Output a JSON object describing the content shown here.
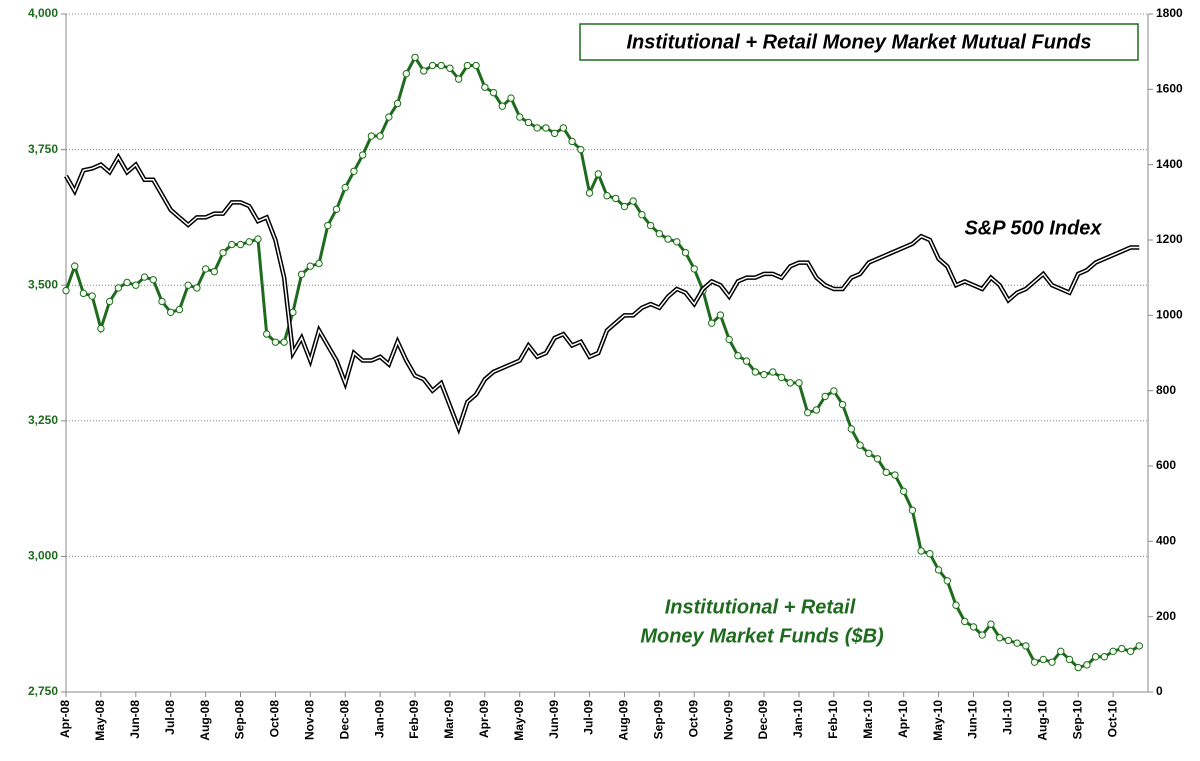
{
  "chart_data": {
    "type": "line",
    "title": "Institutional + Retail Money Market Mutual Funds",
    "annotations": [
      "S&P 500 Index",
      "Institutional + Retail",
      "Money Market Funds  ($B)"
    ],
    "categories": [
      "Apr-08",
      null,
      null,
      null,
      "May-08",
      null,
      null,
      null,
      "Jun-08",
      null,
      null,
      null,
      "Jul-08",
      null,
      null,
      null,
      "Aug-08",
      null,
      null,
      null,
      "Sep-08",
      null,
      null,
      null,
      "Oct-08",
      null,
      null,
      null,
      "Nov-08",
      null,
      null,
      null,
      "Dec-08",
      null,
      null,
      null,
      "Jan-09",
      null,
      null,
      null,
      "Feb-09",
      null,
      null,
      null,
      "Mar-09",
      null,
      null,
      null,
      "Apr-09",
      null,
      null,
      null,
      "May-09",
      null,
      null,
      null,
      "Jun-09",
      null,
      null,
      null,
      "Jul-09",
      null,
      null,
      null,
      "Aug-09",
      null,
      null,
      null,
      "Sep-09",
      null,
      null,
      null,
      "Oct-09",
      null,
      null,
      null,
      "Nov-09",
      null,
      null,
      null,
      "Dec-09",
      null,
      null,
      null,
      "Jan-10",
      null,
      null,
      null,
      "Feb-10",
      null,
      null,
      null,
      "Mar-10",
      null,
      null,
      null,
      "Apr-10",
      null,
      null,
      null,
      "May-10",
      null,
      null,
      null,
      "Jun-10",
      null,
      null,
      null,
      "Jul-10",
      null,
      null,
      null,
      "Aug-10",
      null,
      null,
      null,
      "Sep-10",
      null,
      null,
      null,
      "Oct-10",
      null,
      null,
      null
    ],
    "series": [
      {
        "name": "Institutional + Retail Money Market Funds ($B)",
        "color": "#1e6b1e",
        "axis": "y",
        "markers": true,
        "values": [
          3490,
          3535,
          3485,
          3480,
          3420,
          3470,
          3495,
          3505,
          3500,
          3515,
          3510,
          3470,
          3450,
          3455,
          3500,
          3495,
          3530,
          3525,
          3560,
          3575,
          3575,
          3580,
          3585,
          3410,
          3395,
          3395,
          3450,
          3520,
          3535,
          3540,
          3610,
          3640,
          3680,
          3710,
          3740,
          3775,
          3775,
          3810,
          3835,
          3890,
          3920,
          3895,
          3905,
          3905,
          3900,
          3880,
          3905,
          3905,
          3865,
          3855,
          3830,
          3845,
          3810,
          3800,
          3790,
          3790,
          3780,
          3790,
          3765,
          3750,
          3670,
          3705,
          3665,
          3660,
          3645,
          3655,
          3630,
          3610,
          3595,
          3585,
          3580,
          3560,
          3530,
          3490,
          3430,
          3445,
          3400,
          3370,
          3360,
          3340,
          3335,
          3340,
          3330,
          3320,
          3320,
          3265,
          3270,
          3295,
          3305,
          3280,
          3235,
          3205,
          3190,
          3180,
          3155,
          3150,
          3120,
          3085,
          3010,
          3005,
          2975,
          2955,
          2910,
          2880,
          2870,
          2855,
          2875,
          2850,
          2845,
          2840,
          2835,
          2805,
          2810,
          2805,
          2825,
          2810,
          2795,
          2800,
          2815,
          2815,
          2825,
          2830,
          2825,
          2835
        ]
      },
      {
        "name": "S&P 500 Index",
        "color": "#000000",
        "axis": "y2",
        "markers": false,
        "values": [
          1370,
          1330,
          1385,
          1390,
          1400,
          1380,
          1420,
          1380,
          1400,
          1360,
          1360,
          1320,
          1280,
          1260,
          1240,
          1260,
          1260,
          1270,
          1270,
          1300,
          1300,
          1290,
          1250,
          1260,
          1200,
          1100,
          900,
          940,
          880,
          960,
          920,
          880,
          820,
          900,
          880,
          880,
          890,
          870,
          930,
          880,
          840,
          830,
          800,
          820,
          760,
          700,
          770,
          790,
          830,
          850,
          860,
          870,
          880,
          920,
          890,
          900,
          940,
          950,
          920,
          930,
          890,
          900,
          960,
          980,
          1000,
          1000,
          1020,
          1030,
          1020,
          1050,
          1070,
          1060,
          1030,
          1070,
          1090,
          1080,
          1050,
          1090,
          1100,
          1100,
          1110,
          1110,
          1100,
          1130,
          1140,
          1140,
          1100,
          1080,
          1070,
          1070,
          1100,
          1110,
          1140,
          1150,
          1160,
          1170,
          1180,
          1190,
          1210,
          1200,
          1150,
          1130,
          1080,
          1090,
          1080,
          1070,
          1100,
          1080,
          1040,
          1060,
          1070,
          1090,
          1110,
          1080,
          1070,
          1060,
          1110,
          1120,
          1140,
          1150,
          1160,
          1170,
          1180,
          1180
        ]
      }
    ],
    "ylim": [
      2750,
      4000
    ],
    "yticks": [
      {
        "value": 2750,
        "label": "2,750"
      },
      {
        "value": 3000,
        "label": "3,000"
      },
      {
        "value": 3250,
        "label": "3,250"
      },
      {
        "value": 3500,
        "label": "3,500"
      },
      {
        "value": 3750,
        "label": "3,750"
      },
      {
        "value": 4000,
        "label": "4,000"
      }
    ],
    "y2lim": [
      0,
      1800
    ],
    "y2ticks": [
      0,
      200,
      400,
      600,
      800,
      1000,
      1200,
      1400,
      1600,
      1800
    ],
    "grid": true
  }
}
